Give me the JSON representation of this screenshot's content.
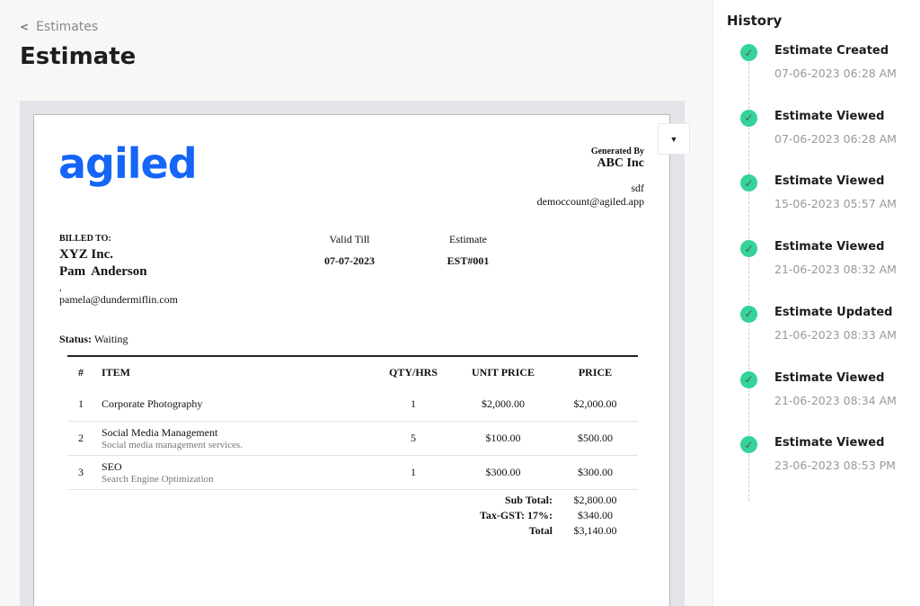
{
  "header": {
    "back_label": "Estimates",
    "title": "Estimate"
  },
  "document": {
    "logo": "agiled",
    "generated_by_label": "Generated By",
    "company": "ABC Inc",
    "company_address": "sdf",
    "company_email": "democcount@agiled.app",
    "billed_to_label": "BILLED TO:",
    "client_company": "XYZ Inc.",
    "client_name": "Pam  Anderson",
    "client_sep": ",",
    "client_email": "pamela@dundermiflin.com",
    "valid_till_label": "Valid Till",
    "valid_till": "07-07-2023",
    "estimate_label": "Estimate",
    "estimate_number": "EST#001",
    "status_label": "Status:",
    "status": "Waiting",
    "columns": [
      "#",
      "ITEM",
      "QTY/HRS",
      "UNIT PRICE",
      "PRICE"
    ],
    "items": [
      {
        "n": "1",
        "name": "Corporate Photography",
        "desc": "",
        "qty": "1",
        "unit": "$2,000.00",
        "price": "$2,000.00"
      },
      {
        "n": "2",
        "name": "Social Media Management",
        "desc": "Social media management services.",
        "qty": "5",
        "unit": "$100.00",
        "price": "$500.00"
      },
      {
        "n": "3",
        "name": "SEO",
        "desc": "Search Engine Optimization",
        "qty": "1",
        "unit": "$300.00",
        "price": "$300.00"
      }
    ],
    "totals": [
      {
        "label": "Sub Total:",
        "value": "$2,800.00"
      },
      {
        "label": "Tax-GST: 17%:",
        "value": "$340.00"
      },
      {
        "label": "Total",
        "value": "$3,140.00"
      }
    ]
  },
  "history": {
    "title": "History",
    "check_color": "#34d399",
    "events": [
      {
        "title": "Estimate Created",
        "date": "07-06-2023 06:28 AM"
      },
      {
        "title": "Estimate Viewed",
        "date": "07-06-2023 06:28 AM"
      },
      {
        "title": "Estimate Viewed",
        "date": "15-06-2023 05:57 AM"
      },
      {
        "title": "Estimate Viewed",
        "date": "21-06-2023 08:32 AM"
      },
      {
        "title": "Estimate Updated",
        "date": "21-06-2023 08:33 AM"
      },
      {
        "title": "Estimate Viewed",
        "date": "21-06-2023 08:34 AM"
      },
      {
        "title": "Estimate Viewed",
        "date": "23-06-2023 08:53 PM"
      }
    ]
  }
}
